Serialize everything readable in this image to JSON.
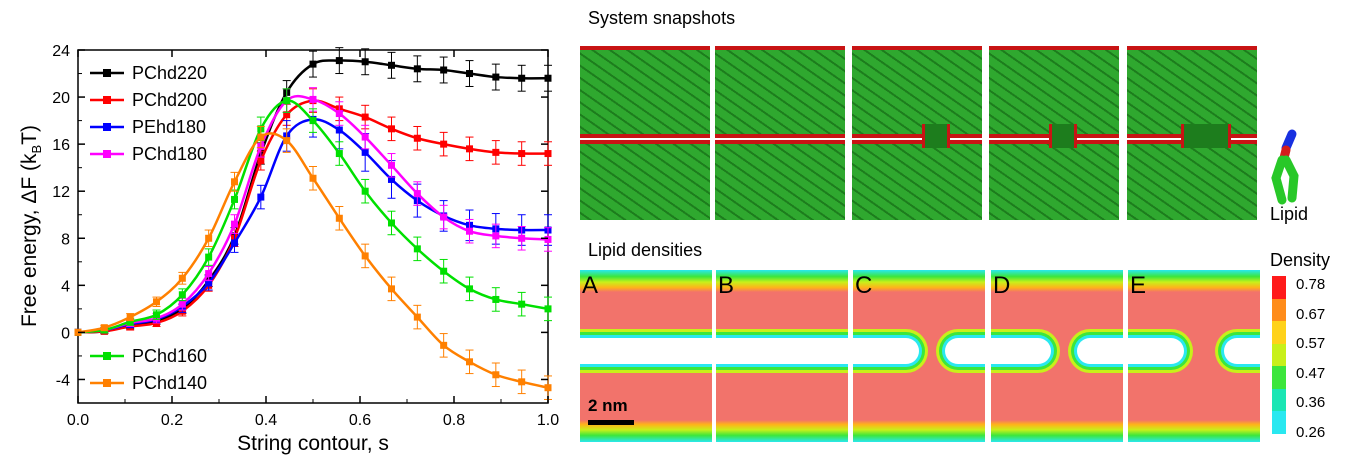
{
  "chart_data": {
    "type": "line",
    "xlabel": "String contour, s",
    "ylabel_main": "Free energy, ΔF (k",
    "ylabel_sub": "B",
    "ylabel_end": "T)",
    "xlim": [
      0.0,
      1.0
    ],
    "ylim": [
      -6,
      24
    ],
    "xticks": [
      "0.0",
      "0.2",
      "0.4",
      "0.6",
      "0.8",
      "1.0"
    ],
    "yticks": [
      "-4",
      "0",
      "4",
      "8",
      "12",
      "16",
      "20",
      "24"
    ],
    "x": [
      0,
      0.056,
      0.111,
      0.167,
      0.222,
      0.278,
      0.333,
      0.389,
      0.444,
      0.5,
      0.556,
      0.611,
      0.667,
      0.722,
      0.778,
      0.833,
      0.889,
      0.944,
      1.0
    ],
    "series": [
      {
        "name": "PChd220",
        "color": "#000000",
        "values": [
          0,
          0.1,
          0.6,
          1.0,
          2.0,
          4.4,
          8.2,
          15.2,
          20.4,
          22.8,
          23.1,
          23.0,
          22.7,
          22.4,
          22.3,
          22.0,
          21.7,
          21.6,
          21.6
        ],
        "errors": [
          0,
          0.2,
          0.3,
          0.3,
          0.4,
          0.5,
          0.7,
          0.9,
          1.0,
          1.1,
          1.1,
          1.1,
          1.1,
          1.1,
          1.1,
          1.1,
          1.1,
          1.1,
          1.1
        ]
      },
      {
        "name": "PChd200",
        "color": "#ff0000",
        "values": [
          0,
          0.1,
          0.5,
          0.8,
          1.8,
          4.0,
          8.0,
          14.6,
          18.5,
          19.7,
          19.0,
          18.3,
          17.3,
          16.5,
          16.0,
          15.6,
          15.3,
          15.2,
          15.2
        ],
        "errors": [
          0,
          0.2,
          0.3,
          0.3,
          0.4,
          0.5,
          0.7,
          0.8,
          0.9,
          1.0,
          1.0,
          1.0,
          1.0,
          1.0,
          1.0,
          1.0,
          1.0,
          1.0,
          1.0
        ]
      },
      {
        "name": "PEhd180",
        "color": "#0000ff",
        "values": [
          0,
          0.2,
          0.7,
          1.1,
          2.2,
          4.2,
          7.6,
          11.5,
          16.7,
          18.1,
          17.2,
          15.3,
          13.0,
          11.2,
          9.9,
          9.1,
          8.8,
          8.7,
          8.7
        ],
        "errors": [
          0,
          0.2,
          0.3,
          0.3,
          0.5,
          0.6,
          0.8,
          1.0,
          1.3,
          1.5,
          1.6,
          1.6,
          1.6,
          1.4,
          1.3,
          1.3,
          1.3,
          1.3,
          1.3
        ]
      },
      {
        "name": "PChd180",
        "color": "#ff00ff",
        "values": [
          0,
          0.2,
          0.8,
          1.2,
          2.4,
          5.0,
          9.2,
          15.8,
          19.7,
          19.8,
          18.6,
          16.6,
          14.2,
          11.8,
          9.8,
          8.6,
          8.2,
          8.0,
          7.9
        ],
        "errors": [
          0,
          0.2,
          0.3,
          0.4,
          0.5,
          0.6,
          0.8,
          0.9,
          1.0,
          1.0,
          1.0,
          1.0,
          1.0,
          1.0,
          1.0,
          1.0,
          1.0,
          1.0,
          1.0
        ]
      },
      {
        "name": "PChd160",
        "color": "#00e000",
        "values": [
          0,
          0.2,
          0.9,
          1.5,
          3.2,
          6.4,
          11.3,
          17.3,
          19.7,
          18.0,
          15.2,
          12.0,
          9.3,
          7.1,
          5.2,
          3.7,
          2.8,
          2.4,
          2.0
        ],
        "errors": [
          0,
          0.2,
          0.3,
          0.4,
          0.5,
          0.7,
          0.8,
          1.0,
          1.0,
          1.0,
          1.0,
          1.0,
          1.0,
          1.0,
          1.0,
          1.0,
          1.0,
          1.0,
          1.0
        ]
      },
      {
        "name": "PChd140",
        "color": "#ff8000",
        "values": [
          0,
          0.4,
          1.3,
          2.6,
          4.6,
          8.0,
          12.8,
          16.6,
          16.3,
          13.1,
          9.7,
          6.5,
          3.7,
          1.3,
          -1.1,
          -2.5,
          -3.6,
          -4.2,
          -4.7
        ],
        "errors": [
          0,
          0.2,
          0.3,
          0.4,
          0.5,
          0.7,
          0.8,
          0.9,
          1.0,
          1.0,
          1.0,
          1.0,
          1.0,
          1.0,
          1.0,
          1.0,
          1.0,
          1.0,
          1.0
        ]
      }
    ]
  },
  "snapshots": {
    "title": "System snapshots",
    "lipid_label": "Lipid",
    "colors": {
      "tails": "#2fa82f",
      "heads": "#c81414",
      "tail_dark": "#1d7d1d"
    }
  },
  "densities": {
    "title": "Lipid densities",
    "panel_labels": [
      "A",
      "B",
      "C",
      "D",
      "E"
    ],
    "scale_bar": "2 nm",
    "colorbar_title": "Density",
    "colorbar_values": [
      "0.78",
      "0.67",
      "0.57",
      "0.47",
      "0.36",
      "0.26"
    ],
    "colorbar_colors": [
      "#ff1a1a",
      "#ff8c1a",
      "#ffd21a",
      "#c8f01a",
      "#3ce63c",
      "#1ae6b4",
      "#29e8f0"
    ],
    "field_color": "#f2736b"
  }
}
